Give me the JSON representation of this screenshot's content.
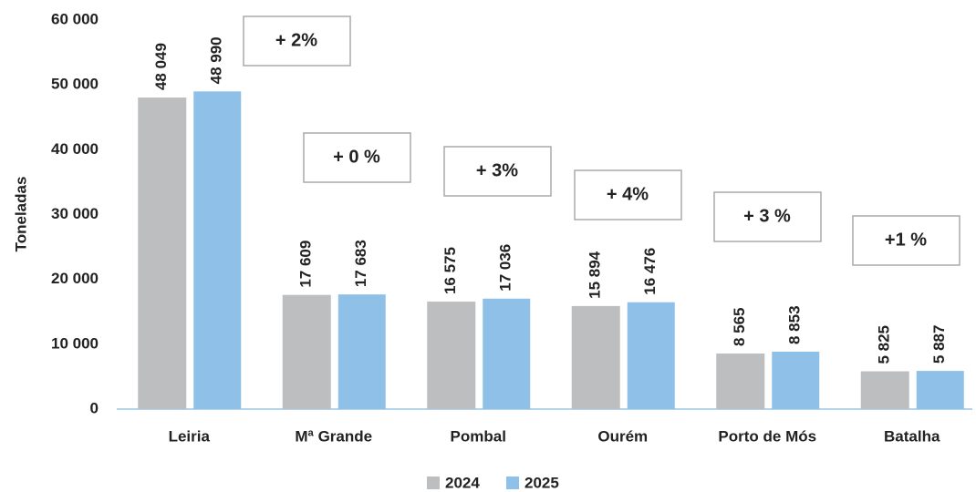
{
  "chart_data": {
    "type": "bar",
    "ylabel": "Toneladas",
    "categories": [
      "Leiria",
      "Mª Grande",
      "Pombal",
      "Ourém",
      "Porto de Mós",
      "Batalha"
    ],
    "series": [
      {
        "name": "2024",
        "color": "#bdbec0",
        "values": [
          48049,
          17609,
          16575,
          15894,
          8565,
          5825
        ],
        "value_labels": [
          "48 049",
          "17 609",
          "16 575",
          "15 894",
          "8 565",
          "5 825"
        ]
      },
      {
        "name": "2025",
        "color": "#8fc0e8",
        "values": [
          48990,
          17683,
          17036,
          16476,
          8853,
          5887
        ],
        "value_labels": [
          "48 990",
          "17 683",
          "17 036",
          "16 476",
          "8 853",
          "5 887"
        ]
      }
    ],
    "annotations": [
      "+ 2%",
      "+ 0 %",
      "+ 3%",
      "+ 4%",
      "+ 3 %",
      "+1 %"
    ],
    "ylim": [
      0,
      60000
    ],
    "yticks": [
      {
        "value": 0,
        "label": "0"
      },
      {
        "value": 10000,
        "label": "10 000"
      },
      {
        "value": 20000,
        "label": "20 000"
      },
      {
        "value": 30000,
        "label": "30 000"
      },
      {
        "value": 40000,
        "label": "40 000"
      },
      {
        "value": 50000,
        "label": "50 000"
      },
      {
        "value": 60000,
        "label": "60 000"
      }
    ],
    "grid": false,
    "legend": "bottom"
  }
}
